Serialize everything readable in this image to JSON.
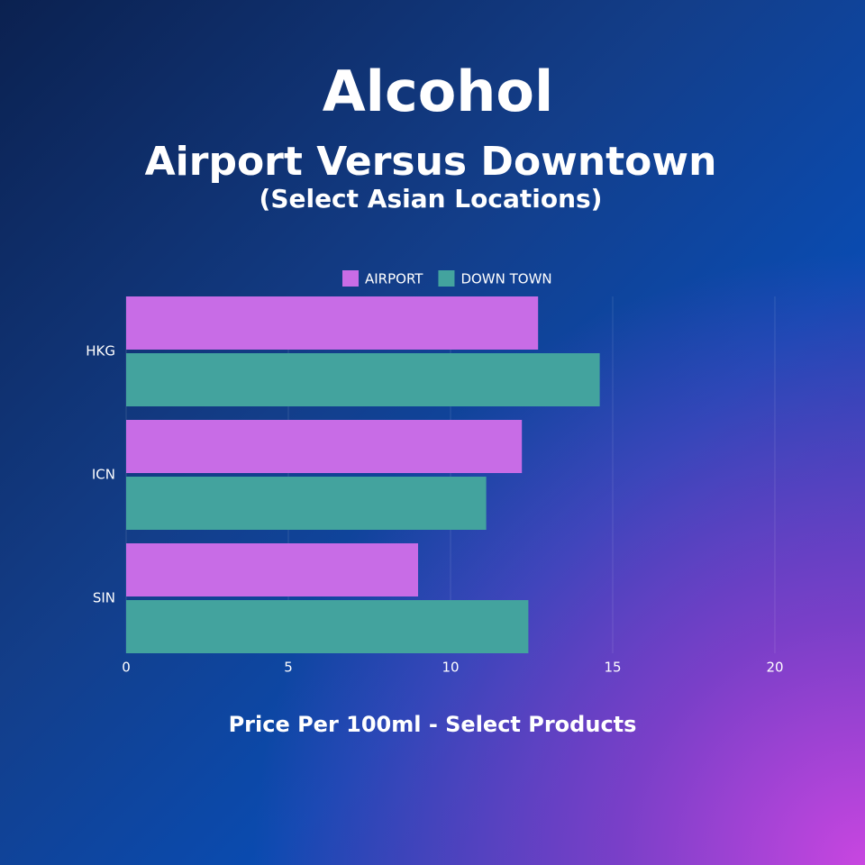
{
  "chart_data": {
    "type": "hbar",
    "title": "Alcohol",
    "subtitle": "Airport Versus Downtown",
    "note": "(Select Asian Locations)",
    "x_label": "Price Per 100ml - Select Products",
    "categories": [
      "HKG",
      "ICN",
      "SIN"
    ],
    "series": [
      {
        "name": "AIRPORT",
        "color": "#c86ce6",
        "values": [
          12.7,
          12.2,
          9.0
        ]
      },
      {
        "name": "DOWN TOWN",
        "color": "#43a39e",
        "values": [
          14.6,
          11.1,
          12.4
        ]
      }
    ],
    "xlim": [
      0,
      20
    ],
    "xticks": [
      0,
      5,
      10,
      15,
      20
    ],
    "grid": true,
    "legend": "top"
  }
}
